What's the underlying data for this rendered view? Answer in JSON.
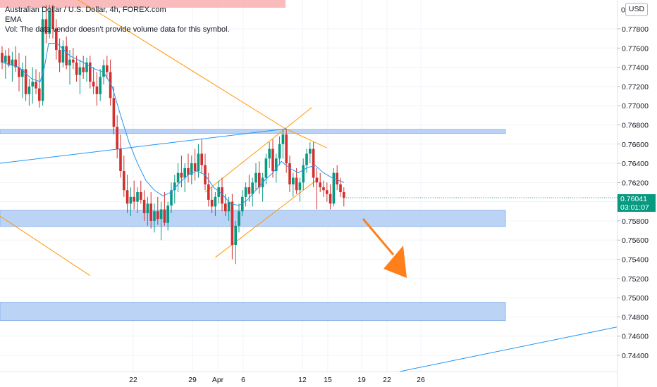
{
  "legend": {
    "title": "Australian Dollar / U.S. Dollar, 4h, FOREX.com",
    "indicator": "EMA",
    "volume_note": "Vol: The data vendor doesn't provide volume data for this symbol."
  },
  "currency_label": "USD",
  "last_price": {
    "value": "0.76041",
    "countdown": "03:01:07",
    "color": "#089981"
  },
  "colors": {
    "up": "#089981",
    "down": "#d32f2f",
    "ema": "#2196f3",
    "zone_fill": "#bbd3f5",
    "zone_stroke": "#90b4ec",
    "orange": "#ff9800",
    "blue_line": "#2196f3",
    "arrow": "#ff7f1a"
  },
  "chart_data": {
    "type": "candlestick",
    "title": "Australian Dollar / U.S. Dollar, 4h, FOREX.com",
    "symbol": "AUDUSD",
    "timeframe": "4h",
    "ylim": [
      0.7428,
      0.7802
    ],
    "yticks": [
      "0.77800",
      "0.77600",
      "0.77400",
      "0.77200",
      "0.77000",
      "0.76800",
      "0.76600",
      "0.76400",
      "0.76200",
      "0.76000",
      "0.75800",
      "0.75600",
      "0.75400",
      "0.75200",
      "0.75000",
      "0.74800",
      "0.74600",
      "0.74400"
    ],
    "xtick_labels": [
      "22",
      "29",
      "Apr",
      "6",
      "12",
      "15",
      "19",
      "22",
      "26"
    ],
    "xtick_positions": [
      15.5,
      22.5,
      25.5,
      28.5,
      35.5,
      38.5,
      42.5,
      45.5,
      49.5
    ],
    "candles": [
      [
        0,
        0.7755,
        0.7762,
        0.7738,
        0.7745
      ],
      [
        0.4,
        0.7745,
        0.7758,
        0.7728,
        0.7752
      ],
      [
        0.8,
        0.7752,
        0.776,
        0.774,
        0.7742
      ],
      [
        1.2,
        0.7742,
        0.7756,
        0.7725,
        0.7748
      ],
      [
        1.6,
        0.7748,
        0.7762,
        0.7735,
        0.774
      ],
      [
        2,
        0.774,
        0.7755,
        0.7715,
        0.773
      ],
      [
        2.4,
        0.773,
        0.7745,
        0.7708,
        0.7738
      ],
      [
        2.8,
        0.7738,
        0.7752,
        0.7705,
        0.7712
      ],
      [
        3.2,
        0.7712,
        0.7728,
        0.77,
        0.772
      ],
      [
        3.6,
        0.772,
        0.774,
        0.7702,
        0.7725
      ],
      [
        4,
        0.7725,
        0.7738,
        0.7712,
        0.7718
      ],
      [
        4.4,
        0.7718,
        0.7735,
        0.7698,
        0.7705
      ],
      [
        4.8,
        0.7705,
        0.7798,
        0.77,
        0.779
      ],
      [
        5.2,
        0.779,
        0.7805,
        0.7765,
        0.7775
      ],
      [
        5.6,
        0.7775,
        0.7805,
        0.777,
        0.7798
      ],
      [
        6,
        0.7798,
        0.7805,
        0.777,
        0.778
      ],
      [
        6.4,
        0.778,
        0.779,
        0.7748,
        0.7758
      ],
      [
        6.8,
        0.7758,
        0.777,
        0.7735,
        0.7745
      ],
      [
        7.2,
        0.7745,
        0.7768,
        0.774,
        0.7762
      ],
      [
        7.6,
        0.7762,
        0.7772,
        0.7738,
        0.7742
      ],
      [
        8,
        0.7742,
        0.7758,
        0.7722,
        0.7748
      ],
      [
        8.4,
        0.7748,
        0.776,
        0.7738,
        0.7745
      ],
      [
        8.8,
        0.7745,
        0.7752,
        0.7725,
        0.7732
      ],
      [
        9.2,
        0.7732,
        0.7748,
        0.7712,
        0.774
      ],
      [
        9.6,
        0.774,
        0.7752,
        0.7728,
        0.7735
      ],
      [
        10,
        0.7735,
        0.775,
        0.7725,
        0.7745
      ],
      [
        10.4,
        0.7745,
        0.7752,
        0.7718,
        0.7725
      ],
      [
        10.8,
        0.7725,
        0.774,
        0.7712,
        0.772
      ],
      [
        11.2,
        0.772,
        0.7735,
        0.77,
        0.7712
      ],
      [
        11.6,
        0.7712,
        0.7738,
        0.7705,
        0.773
      ],
      [
        12,
        0.773,
        0.7748,
        0.7722,
        0.7742
      ],
      [
        12.4,
        0.7742,
        0.7752,
        0.7728,
        0.7735
      ],
      [
        12.8,
        0.7735,
        0.7748,
        0.77,
        0.7708
      ],
      [
        13.2,
        0.7708,
        0.772,
        0.767,
        0.7678
      ],
      [
        13.6,
        0.7678,
        0.769,
        0.7645,
        0.7655
      ],
      [
        14,
        0.7655,
        0.767,
        0.7625,
        0.7632
      ],
      [
        14.4,
        0.7632,
        0.7648,
        0.7605,
        0.7612
      ],
      [
        14.8,
        0.7612,
        0.7628,
        0.7588,
        0.7598
      ],
      [
        15.2,
        0.7598,
        0.7615,
        0.7585,
        0.7605
      ],
      [
        15.6,
        0.7605,
        0.7622,
        0.7592,
        0.76
      ],
      [
        16,
        0.76,
        0.7615,
        0.7588,
        0.761
      ],
      [
        16.4,
        0.761,
        0.7622,
        0.7598,
        0.7602
      ],
      [
        16.8,
        0.7602,
        0.7612,
        0.758,
        0.7588
      ],
      [
        17.2,
        0.7588,
        0.7605,
        0.7575,
        0.7598
      ],
      [
        17.6,
        0.7598,
        0.761,
        0.7572,
        0.758
      ],
      [
        18,
        0.758,
        0.7598,
        0.7568,
        0.759
      ],
      [
        18.4,
        0.759,
        0.7605,
        0.7576,
        0.7582
      ],
      [
        18.8,
        0.7582,
        0.76,
        0.756,
        0.7592
      ],
      [
        19.2,
        0.7592,
        0.761,
        0.7575,
        0.7578
      ],
      [
        19.6,
        0.7578,
        0.76,
        0.757,
        0.7596
      ],
      [
        20,
        0.7596,
        0.762,
        0.7588,
        0.7612
      ],
      [
        20.4,
        0.7612,
        0.7628,
        0.7598,
        0.762
      ],
      [
        20.8,
        0.762,
        0.764,
        0.761,
        0.763
      ],
      [
        21.2,
        0.763,
        0.7648,
        0.7615,
        0.7625
      ],
      [
        21.6,
        0.7625,
        0.764,
        0.761,
        0.7635
      ],
      [
        22,
        0.7635,
        0.765,
        0.762,
        0.7628
      ],
      [
        22.4,
        0.7628,
        0.7648,
        0.7618,
        0.764
      ],
      [
        22.8,
        0.764,
        0.7655,
        0.7622,
        0.7632
      ],
      [
        23.2,
        0.7632,
        0.766,
        0.7625,
        0.765
      ],
      [
        23.6,
        0.765,
        0.7665,
        0.763,
        0.7638
      ],
      [
        24,
        0.7638,
        0.765,
        0.7612,
        0.7618
      ],
      [
        24.4,
        0.7618,
        0.763,
        0.7595,
        0.7602
      ],
      [
        24.8,
        0.7602,
        0.7615,
        0.7588,
        0.7595
      ],
      [
        25.2,
        0.7595,
        0.761,
        0.7585,
        0.7605
      ],
      [
        25.6,
        0.7605,
        0.7622,
        0.7598,
        0.7615
      ],
      [
        26,
        0.7615,
        0.7625,
        0.759,
        0.7598
      ],
      [
        26.4,
        0.7598,
        0.7608,
        0.7585,
        0.759
      ],
      [
        26.8,
        0.759,
        0.7605,
        0.758,
        0.76
      ],
      [
        27.2,
        0.76,
        0.7608,
        0.754,
        0.7555
      ],
      [
        27.6,
        0.7555,
        0.758,
        0.7535,
        0.7575
      ],
      [
        28,
        0.7575,
        0.7598,
        0.7568,
        0.759
      ],
      [
        28.4,
        0.759,
        0.7612,
        0.7585,
        0.7605
      ],
      [
        28.8,
        0.7605,
        0.762,
        0.7595,
        0.7615
      ],
      [
        29.2,
        0.7615,
        0.7628,
        0.76,
        0.7608
      ],
      [
        29.6,
        0.7608,
        0.7625,
        0.7595,
        0.762
      ],
      [
        30,
        0.762,
        0.764,
        0.7612,
        0.763
      ],
      [
        30.4,
        0.763,
        0.7642,
        0.7608,
        0.7615
      ],
      [
        30.8,
        0.7615,
        0.763,
        0.76,
        0.7625
      ],
      [
        31.2,
        0.7625,
        0.765,
        0.7618,
        0.7645
      ],
      [
        31.6,
        0.7645,
        0.7662,
        0.7635,
        0.7655
      ],
      [
        32,
        0.7655,
        0.7665,
        0.7625,
        0.7632
      ],
      [
        32.4,
        0.7632,
        0.765,
        0.762,
        0.7645
      ],
      [
        32.8,
        0.7645,
        0.7668,
        0.7638,
        0.766
      ],
      [
        33.2,
        0.766,
        0.7675,
        0.7645,
        0.767
      ],
      [
        33.6,
        0.767,
        0.7676,
        0.763,
        0.764
      ],
      [
        34,
        0.764,
        0.7648,
        0.761,
        0.7618
      ],
      [
        34.4,
        0.7618,
        0.763,
        0.7605,
        0.7625
      ],
      [
        34.8,
        0.7625,
        0.7635,
        0.7608,
        0.7612
      ],
      [
        35.2,
        0.7612,
        0.7625,
        0.76,
        0.762
      ],
      [
        35.6,
        0.762,
        0.7645,
        0.7612,
        0.7638
      ],
      [
        36,
        0.7638,
        0.7655,
        0.763,
        0.765
      ],
      [
        36.4,
        0.765,
        0.7662,
        0.764,
        0.7655
      ],
      [
        36.8,
        0.7655,
        0.7662,
        0.7615,
        0.7625
      ],
      [
        37.2,
        0.7625,
        0.7635,
        0.7592,
        0.762
      ],
      [
        37.6,
        0.762,
        0.763,
        0.761,
        0.7615
      ],
      [
        38,
        0.7615,
        0.7622,
        0.7605,
        0.7612
      ],
      [
        38.4,
        0.7612,
        0.762,
        0.76,
        0.7608
      ],
      [
        38.8,
        0.7608,
        0.7618,
        0.7592,
        0.7598
      ],
      [
        39.2,
        0.7598,
        0.7635,
        0.7595,
        0.763
      ],
      [
        39.6,
        0.763,
        0.7638,
        0.7612,
        0.7618
      ],
      [
        40,
        0.7618,
        0.7625,
        0.7605,
        0.761
      ],
      [
        40.4,
        0.761,
        0.7615,
        0.7595,
        0.7604
      ]
    ],
    "ema": [
      [
        0,
        0.7745
      ],
      [
        2,
        0.774
      ],
      [
        3.5,
        0.7728
      ],
      [
        4.5,
        0.7725
      ],
      [
        5,
        0.774
      ],
      [
        5.5,
        0.7765
      ],
      [
        6.5,
        0.7765
      ],
      [
        8,
        0.7752
      ],
      [
        9.6,
        0.7745
      ],
      [
        11,
        0.7738
      ],
      [
        12,
        0.7735
      ],
      [
        13,
        0.772
      ],
      [
        14,
        0.769
      ],
      [
        15,
        0.7662
      ],
      [
        16,
        0.764
      ],
      [
        17,
        0.7622
      ],
      [
        18,
        0.7612
      ],
      [
        19,
        0.7606
      ],
      [
        20,
        0.761
      ],
      [
        21,
        0.762
      ],
      [
        22,
        0.7628
      ],
      [
        23,
        0.7632
      ],
      [
        24,
        0.7628
      ],
      [
        25,
        0.7615
      ],
      [
        26,
        0.7608
      ],
      [
        27,
        0.7598
      ],
      [
        28,
        0.7596
      ],
      [
        29,
        0.7602
      ],
      [
        30,
        0.7612
      ],
      [
        31,
        0.7622
      ],
      [
        32,
        0.763
      ],
      [
        33,
        0.7642
      ],
      [
        34,
        0.7635
      ],
      [
        35,
        0.763
      ],
      [
        36,
        0.7635
      ],
      [
        37,
        0.7638
      ],
      [
        38,
        0.763
      ],
      [
        39,
        0.7625
      ],
      [
        40.4,
        0.762
      ]
    ],
    "support_resistance_zones": [
      [
        0.76712,
        0.76752
      ],
      [
        0.75742,
        0.7591
      ],
      [
        0.74762,
        0.74952
      ]
    ],
    "last_price": 0.76041
  }
}
